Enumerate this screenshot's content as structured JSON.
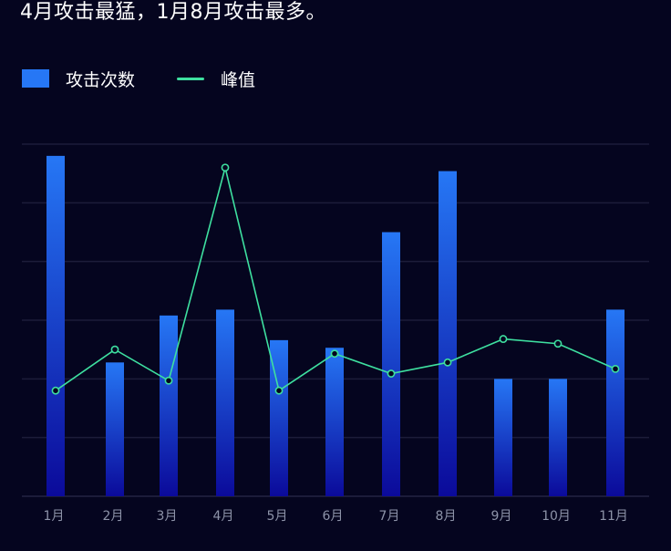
{
  "headline": "4月攻击最猛，1月8月攻击最多。",
  "legend": {
    "bar_label": "攻击次数",
    "line_label": "峰值"
  },
  "colors": {
    "background": "#05051f",
    "bar_top": "#2677f5",
    "bar_bottom": "#0b0a9a",
    "line": "#3ee0a0",
    "grid": "#1c1c3a",
    "tick_text": "#8d93a8"
  },
  "chart_data": {
    "type": "bar",
    "title": "",
    "xlabel": "",
    "ylabel": "",
    "categories": [
      "1月",
      "2月",
      "3月",
      "4月",
      "5月",
      "6月",
      "7月",
      "8月",
      "9月",
      "10月",
      "11月"
    ],
    "series": [
      {
        "name": "攻击次数",
        "type": "bar",
        "values": [
          5.8,
          2.28,
          3.08,
          3.18,
          2.66,
          2.53,
          4.5,
          5.54,
          2.0,
          2.0,
          3.18
        ]
      },
      {
        "name": "峰值",
        "type": "line",
        "values": [
          1.8,
          2.5,
          1.97,
          5.6,
          1.8,
          2.43,
          2.09,
          2.28,
          2.68,
          2.6,
          2.17
        ]
      }
    ],
    "ylim": [
      0,
      6
    ],
    "y_axis_labels_shown": false,
    "grid": true,
    "legend_position": "top-left"
  }
}
